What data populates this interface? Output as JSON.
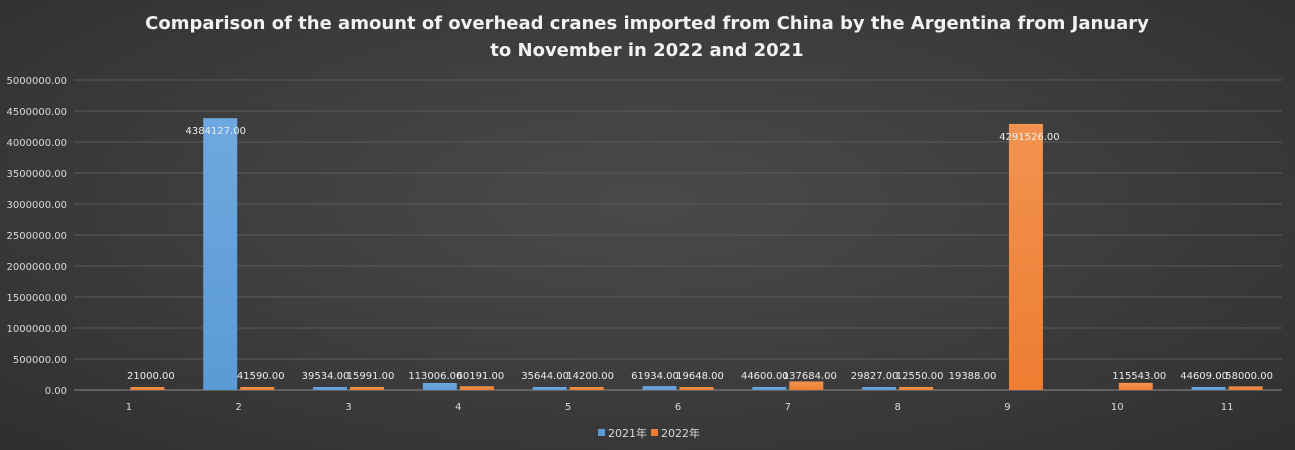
{
  "chart_data": {
    "type": "bar",
    "title_line1": "Comparison of the amount of overhead cranes imported from China by the Argentina from January",
    "title_line2": "to November in 2022 and 2021",
    "categories": [
      "1",
      "2",
      "3",
      "4",
      "5",
      "6",
      "7",
      "8",
      "9",
      "10",
      "11"
    ],
    "series": [
      {
        "name": "2021年",
        "color": "#5b9bd5",
        "values": [
          null,
          4384127.0,
          39534.0,
          113006.0,
          35644.0,
          61934.0,
          44600.0,
          29827.0,
          null,
          null,
          44609.0
        ],
        "labels": [
          "",
          "4384127.00",
          "39534.00",
          "113006.00",
          "35644.00",
          "61934.00",
          "44600.00",
          "29827.00",
          "",
          "",
          "44609.00"
        ]
      },
      {
        "name": "2022年",
        "color": "#ed7d31",
        "values": [
          21000.0,
          41590.0,
          15991.0,
          60191.0,
          14200.0,
          19648.0,
          137684.0,
          12550.0,
          4291526.0,
          115543.0,
          58000.0
        ],
        "labels": [
          "21000.00",
          "41590.00",
          "15991.00",
          "60191.00",
          "14200.00",
          "19648.00",
          "137684.00",
          "12550.00",
          "4291526.00",
          "115543.00",
          "58000.00"
        ]
      }
    ],
    "extra_labels": [
      {
        "category_index": 8,
        "text": "19388.00"
      }
    ],
    "y_ticks": [
      "0.00",
      "500000.00",
      "1000000.00",
      "1500000.00",
      "2000000.00",
      "2500000.00",
      "3000000.00",
      "3500000.00",
      "4000000.00",
      "4500000.00",
      "5000000.00"
    ],
    "ylim": [
      0,
      5000000
    ],
    "grid": true,
    "legend_position": "bottom"
  }
}
